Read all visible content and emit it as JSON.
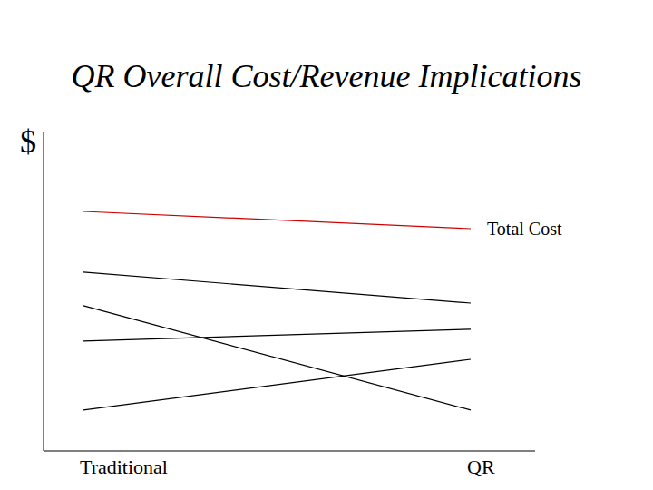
{
  "chart_data": {
    "type": "line",
    "title": "QR Overall Cost/Revenue Implications",
    "y_label": "$",
    "categories": [
      "Traditional",
      "QR"
    ],
    "ylim": [
      0,
      100
    ],
    "tick_labels": "x",
    "series": [
      {
        "name": "Total Cost",
        "color": "#cc0000",
        "values": [
          75.0,
          69.6
        ]
      },
      {
        "color": "#000000",
        "values": [
          56.0,
          46.3
        ]
      },
      {
        "color": "#000000",
        "values": [
          45.5,
          12.8
        ]
      },
      {
        "color": "#000000",
        "values": [
          34.4,
          38.1
        ]
      },
      {
        "color": "#000000",
        "values": [
          12.8,
          28.7
        ]
      }
    ]
  }
}
